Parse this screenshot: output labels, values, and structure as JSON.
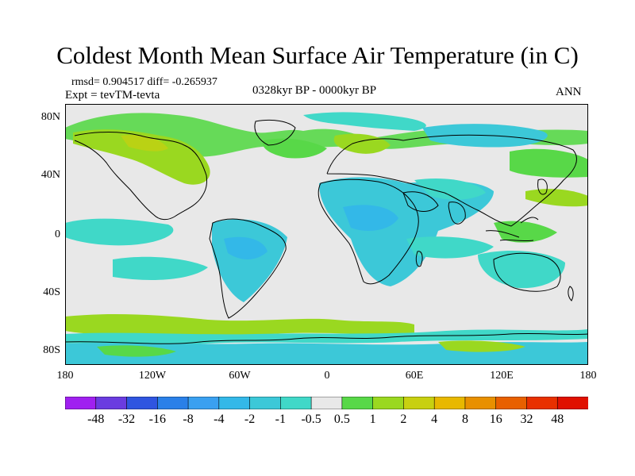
{
  "title": "Coldest Month Mean Surface Air Temperature (in C)",
  "stats": "rmsd= 0.904517  diff= -0.265937",
  "experiment": "Expt = tevTM-tevta",
  "period": "0328kyr BP - 0000kyr BP",
  "season": "ANN",
  "lat_labels": [
    "80N",
    "40N",
    "0",
    "40S",
    "80S"
  ],
  "lon_labels": [
    "180",
    "120W",
    "60W",
    "0",
    "60E",
    "120E",
    "180"
  ],
  "colorbar": {
    "labels": [
      "-48",
      "-32",
      "-16",
      "-8",
      "-4",
      "-2",
      "-1",
      "-0.5",
      "0.5",
      "1",
      "2",
      "4",
      "8",
      "16",
      "32",
      "48"
    ],
    "colors": [
      "#a020f0",
      "#6a3ce0",
      "#2f55e0",
      "#2a80e8",
      "#3aa0f0",
      "#33b8e8",
      "#3cc8d8",
      "#40d8c8",
      "#e8e8e8",
      "#58d848",
      "#9ad820",
      "#c8d010",
      "#e8b800",
      "#e89000",
      "#e86000",
      "#e83000",
      "#e01000"
    ]
  },
  "colors": {
    "neutral": "#e8e8e8",
    "cool": "#40d8c8",
    "cool_strong": "#33b8e8",
    "warm": "#58d848",
    "warm_strong": "#9ad820",
    "coastline": "#000000"
  }
}
